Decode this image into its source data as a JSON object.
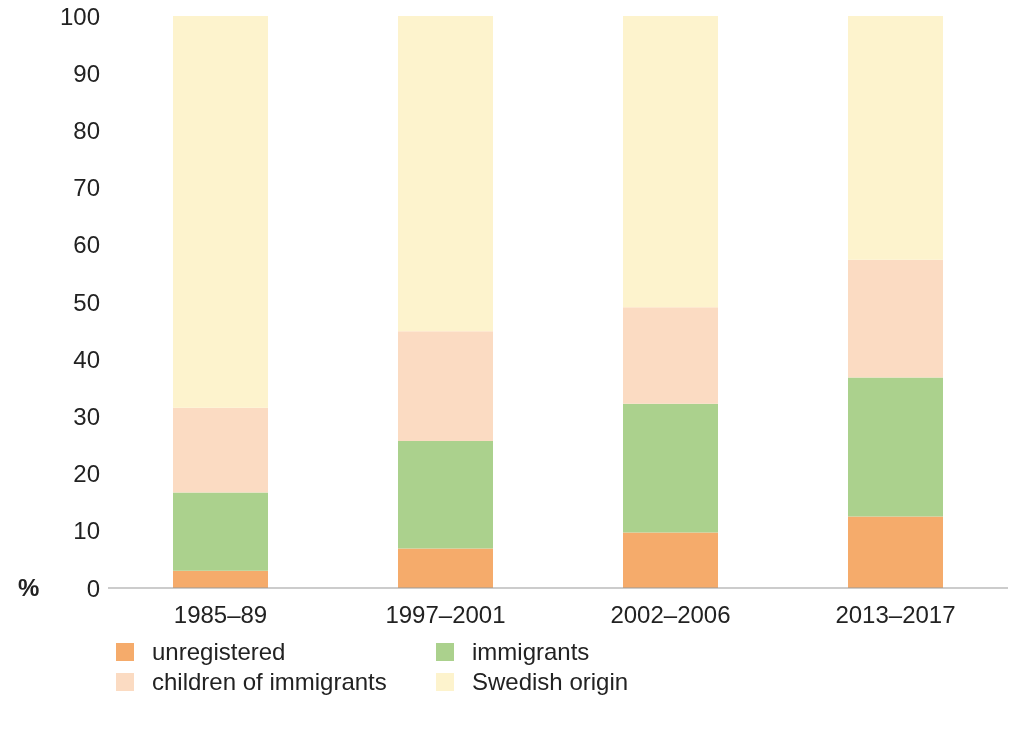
{
  "chart_data": {
    "type": "bar",
    "stacked": true,
    "ylabel": "%",
    "categories": [
      "1985–89",
      "1997–2001",
      "2002–2006",
      "2013–2017"
    ],
    "series": [
      {
        "name": "unregistered",
        "color": "#f5ab6b",
        "values": [
          3.0,
          6.9,
          9.7,
          12.5
        ]
      },
      {
        "name": "immigrants",
        "color": "#abd18d",
        "values": [
          13.7,
          18.8,
          22.5,
          24.3
        ]
      },
      {
        "name": "children of immigrants",
        "color": "#fbdbc2",
        "values": [
          14.8,
          19.2,
          16.9,
          20.6
        ]
      },
      {
        "name": "Swedish origin",
        "color": "#fdf3cd",
        "values": [
          68.5,
          55.1,
          50.9,
          42.6
        ]
      }
    ],
    "ylim": [
      0,
      100
    ],
    "yticks": [
      0,
      10,
      20,
      30,
      40,
      50,
      60,
      70,
      80,
      90,
      100
    ],
    "grid": false,
    "legend": "bottom"
  }
}
